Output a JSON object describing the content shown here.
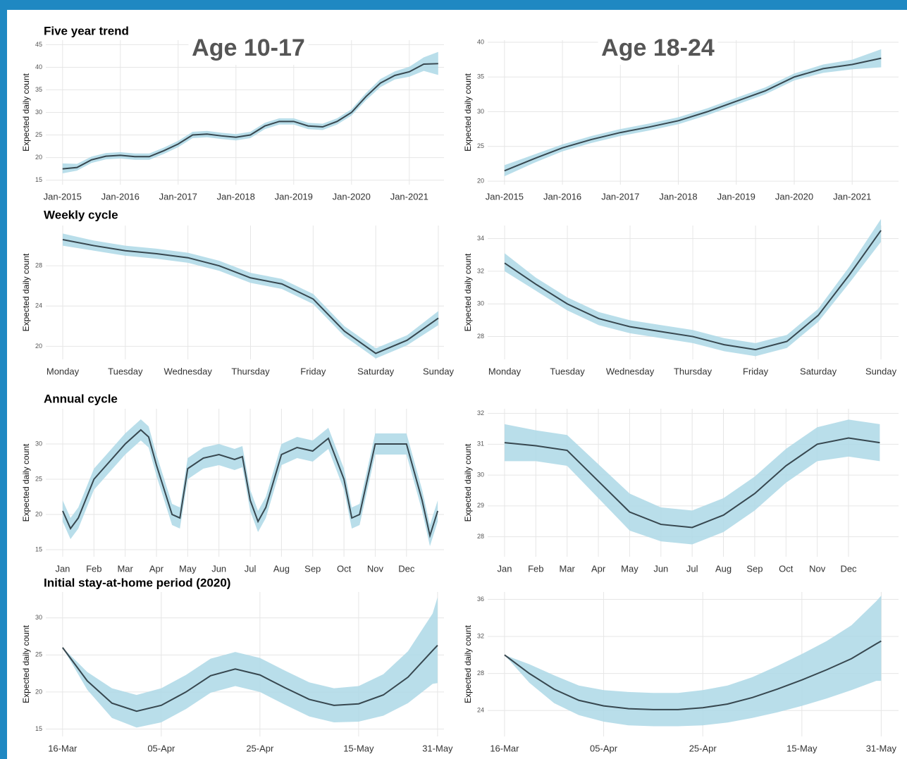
{
  "chart_data": [
    {
      "type": "line",
      "title": "Five year trend",
      "annotation": "Age 10-17",
      "y_label": "Expected daily count",
      "x": [
        2015,
        2015.25,
        2015.5,
        2015.75,
        2016,
        2016.25,
        2016.5,
        2016.75,
        2017,
        2017.25,
        2017.5,
        2017.75,
        2018,
        2018.25,
        2018.5,
        2018.75,
        2019,
        2019.25,
        2019.5,
        2019.75,
        2020,
        2020.25,
        2020.5,
        2020.75,
        2021,
        2021.25,
        2021.5
      ],
      "values": [
        17.5,
        17.8,
        19.5,
        20.3,
        20.5,
        20.2,
        20.2,
        21.5,
        23,
        25,
        25.2,
        24.8,
        24.5,
        25,
        27,
        28,
        28,
        27,
        26.8,
        28,
        30,
        33.5,
        36.5,
        38.2,
        39,
        40.7,
        40.8
      ],
      "lower": [
        16.5,
        17.1,
        18.8,
        19.6,
        19.8,
        19.5,
        19.5,
        20.8,
        22.3,
        24.3,
        24.5,
        24.1,
        23.8,
        24.3,
        26.3,
        27.3,
        27.3,
        26.3,
        26.1,
        27.3,
        29.3,
        32.7,
        35.6,
        37.3,
        37.9,
        39.2,
        38.3
      ],
      "upper": [
        18.7,
        18.6,
        20.2,
        21,
        21.2,
        20.9,
        20.9,
        22.2,
        23.7,
        25.7,
        25.9,
        25.5,
        25.2,
        25.7,
        27.7,
        28.7,
        28.7,
        27.7,
        27.5,
        28.7,
        30.7,
        34.3,
        37.4,
        39.1,
        40.1,
        42.2,
        43.4
      ],
      "xlim": [
        2014.71,
        2021.6
      ],
      "ylim": [
        14,
        46
      ],
      "xticks": [
        {
          "value": 2015,
          "label": "Jan-2015"
        },
        {
          "value": 2016,
          "label": "Jan-2016"
        },
        {
          "value": 2017,
          "label": "Jan-2017"
        },
        {
          "value": 2018,
          "label": "Jan-2018"
        },
        {
          "value": 2019,
          "label": "Jan-2019"
        },
        {
          "value": 2020,
          "label": "Jan-2020"
        },
        {
          "value": 2021,
          "label": "Jan-2021"
        }
      ],
      "yticks": [
        15,
        20,
        25,
        30,
        35,
        40,
        45
      ],
      "color": "#37474f",
      "band_color": "#add8e6",
      "grid": true
    },
    {
      "type": "line",
      "annotation": "Age 18-24",
      "y_label": "Expected daily count",
      "x": [
        2015,
        2015.5,
        2016,
        2016.5,
        2017,
        2017.5,
        2018,
        2018.5,
        2019,
        2019.5,
        2020,
        2020.5,
        2021,
        2021.5
      ],
      "values": [
        21.5,
        23.2,
        24.8,
        26,
        27,
        27.8,
        28.7,
        30,
        31.5,
        33,
        35,
        36.2,
        36.8,
        37.7
      ],
      "lower": [
        20.7,
        22.6,
        24.3,
        25.5,
        26.5,
        27.3,
        28.2,
        29.5,
        31,
        32.5,
        34.5,
        35.6,
        36.1,
        36.4
      ],
      "upper": [
        22.3,
        23.8,
        25.3,
        26.5,
        27.5,
        28.3,
        29.2,
        30.5,
        32,
        33.5,
        35.5,
        36.8,
        37.5,
        39
      ],
      "xlim": [
        2014.71,
        2021.8
      ],
      "ylim": [
        19.5,
        40.3
      ],
      "xticks": [
        {
          "value": 2015,
          "label": "Jan-2015"
        },
        {
          "value": 2016,
          "label": "Jan-2016"
        },
        {
          "value": 2017,
          "label": "Jan-2017"
        },
        {
          "value": 2018,
          "label": "Jan-2018"
        },
        {
          "value": 2019,
          "label": "Jan-2019"
        },
        {
          "value": 2020,
          "label": "Jan-2020"
        },
        {
          "value": 2021,
          "label": "Jan-2021"
        }
      ],
      "yticks": [
        20,
        25,
        30,
        35,
        40
      ],
      "color": "#37474f",
      "band_color": "#add8e6",
      "grid": true
    },
    {
      "type": "line",
      "title": "Weekly cycle",
      "y_label": "Expected daily count",
      "x": [
        0,
        0.5,
        1,
        1.5,
        2,
        2.5,
        3,
        3.5,
        4,
        4.5,
        5,
        5.5,
        6
      ],
      "values": [
        30.6,
        30,
        29.5,
        29.2,
        28.8,
        28,
        26.8,
        26.2,
        24.7,
        21.5,
        19.3,
        20.6,
        22.8
      ],
      "lower": [
        30,
        29.5,
        29,
        28.7,
        28.3,
        27.5,
        26.3,
        25.7,
        24.2,
        21,
        18.8,
        20.1,
        22.1
      ],
      "upper": [
        31.2,
        30.5,
        30,
        29.7,
        29.3,
        28.5,
        27.3,
        26.7,
        25.2,
        22,
        19.8,
        21.1,
        23.5
      ],
      "xlim": [
        -0.27,
        6.09
      ],
      "ylim": [
        18.7,
        32
      ],
      "xticks": [
        {
          "value": 0,
          "label": "Monday"
        },
        {
          "value": 1,
          "label": "Tuesday"
        },
        {
          "value": 2,
          "label": "Wednesday"
        },
        {
          "value": 3,
          "label": "Thursday"
        },
        {
          "value": 4,
          "label": "Friday"
        },
        {
          "value": 5,
          "label": "Saturday"
        },
        {
          "value": 6,
          "label": "Sunday"
        }
      ],
      "yticks": [
        20,
        24,
        28
      ],
      "color": "#37474f",
      "band_color": "#add8e6",
      "grid": true
    },
    {
      "type": "line",
      "y_label": "Expected daily count",
      "x": [
        0,
        0.5,
        1,
        1.5,
        2,
        2.5,
        3,
        3.5,
        4,
        4.5,
        5,
        5.5,
        6
      ],
      "values": [
        32.5,
        31.2,
        30,
        29.1,
        28.6,
        28.3,
        28,
        27.5,
        27.2,
        27.7,
        29.3,
        31.8,
        34.5
      ],
      "lower": [
        32,
        30.8,
        29.6,
        28.7,
        28.2,
        27.9,
        27.6,
        27.1,
        26.8,
        27.3,
        28.9,
        31.3,
        33.8
      ],
      "upper": [
        33.1,
        31.6,
        30.4,
        29.5,
        29,
        28.7,
        28.4,
        27.9,
        27.6,
        28.1,
        29.7,
        32.3,
        35.2
      ],
      "xlim": [
        -0.27,
        6.28
      ],
      "ylim": [
        26.6,
        34.8
      ],
      "xticks": [
        {
          "value": 0,
          "label": "Monday"
        },
        {
          "value": 1,
          "label": "Tuesday"
        },
        {
          "value": 2,
          "label": "Wednesday"
        },
        {
          "value": 3,
          "label": "Thursday"
        },
        {
          "value": 4,
          "label": "Friday"
        },
        {
          "value": 5,
          "label": "Saturday"
        },
        {
          "value": 6,
          "label": "Sunday"
        }
      ],
      "yticks": [
        28,
        30,
        32,
        34
      ],
      "color": "#37474f",
      "band_color": "#add8e6",
      "grid": true
    },
    {
      "type": "line",
      "title": "Annual cycle",
      "y_label": "Expected daily count",
      "x": [
        0,
        0.25,
        0.5,
        1,
        1.5,
        2,
        2.5,
        2.75,
        3,
        3.5,
        3.75,
        4,
        4.5,
        5,
        5.5,
        5.75,
        6,
        6.25,
        6.5,
        7,
        7.5,
        8,
        8.5,
        9,
        9.25,
        9.5,
        10,
        10.5,
        11,
        11.5,
        11.75,
        12
      ],
      "values": [
        20.5,
        18,
        19.5,
        25,
        27.5,
        30,
        32,
        31,
        27,
        20,
        19.5,
        26.5,
        28,
        28.5,
        27.8,
        28.2,
        22,
        19,
        21,
        28.5,
        29.5,
        29,
        30.8,
        25,
        19.5,
        20,
        30,
        30,
        30,
        22,
        17,
        20.5
      ],
      "lower": [
        19,
        16.5,
        18,
        23.5,
        26,
        28.5,
        30.5,
        29.5,
        25.5,
        18.5,
        18,
        25,
        26.5,
        27,
        26.3,
        26.7,
        20.5,
        17.5,
        19.5,
        27,
        28,
        27.5,
        29.3,
        23.5,
        18,
        18.5,
        28.5,
        28.5,
        28.5,
        20.5,
        15.5,
        19
      ],
      "upper": [
        22,
        19.5,
        21,
        26.5,
        29,
        31.5,
        33.5,
        32.5,
        28.5,
        21.5,
        21,
        28,
        29.5,
        30,
        29.3,
        29.7,
        23.5,
        20.5,
        22.5,
        30,
        31,
        30.5,
        32.3,
        26.5,
        21,
        21.5,
        31.5,
        31.5,
        31.5,
        23.5,
        18.5,
        22
      ],
      "xlim": [
        -0.54,
        12.2
      ],
      "ylim": [
        14,
        35
      ],
      "xticks": [
        {
          "value": 0,
          "label": "Jan"
        },
        {
          "value": 1,
          "label": "Feb"
        },
        {
          "value": 2,
          "label": "Mar"
        },
        {
          "value": 3,
          "label": "Apr"
        },
        {
          "value": 4,
          "label": "May"
        },
        {
          "value": 5,
          "label": "Jun"
        },
        {
          "value": 6,
          "label": "Jul"
        },
        {
          "value": 7,
          "label": "Aug"
        },
        {
          "value": 8,
          "label": "Sep"
        },
        {
          "value": 9,
          "label": "Oct"
        },
        {
          "value": 10,
          "label": "Nov"
        },
        {
          "value": 11,
          "label": "Dec"
        }
      ],
      "yticks": [
        15,
        20,
        25,
        30
      ],
      "color": "#37474f",
      "band_color": "#add8e6",
      "grid": true
    },
    {
      "type": "line",
      "y_label": "Expected daily count",
      "x": [
        0,
        1,
        2,
        3,
        4,
        5,
        6,
        7,
        8,
        9,
        10,
        11,
        12
      ],
      "values": [
        31.05,
        30.95,
        30.8,
        29.8,
        28.8,
        28.4,
        28.3,
        28.7,
        29.4,
        30.3,
        31,
        31.2,
        31.05
      ],
      "lower": [
        30.45,
        30.45,
        30.3,
        29.25,
        28.2,
        27.85,
        27.75,
        28.15,
        28.85,
        29.75,
        30.45,
        30.6,
        30.45
      ],
      "upper": [
        31.65,
        31.45,
        31.3,
        30.35,
        29.4,
        28.95,
        28.85,
        29.25,
        29.95,
        30.85,
        31.55,
        31.8,
        31.65
      ],
      "xlim": [
        -0.54,
        12.6
      ],
      "ylim": [
        27.35,
        32.15
      ],
      "xticks": [
        {
          "value": 0,
          "label": "Jan"
        },
        {
          "value": 1,
          "label": "Feb"
        },
        {
          "value": 2,
          "label": "Mar"
        },
        {
          "value": 3,
          "label": "Apr"
        },
        {
          "value": 4,
          "label": "May"
        },
        {
          "value": 5,
          "label": "Jun"
        },
        {
          "value": 6,
          "label": "Jul"
        },
        {
          "value": 7,
          "label": "Aug"
        },
        {
          "value": 8,
          "label": "Sep"
        },
        {
          "value": 9,
          "label": "Oct"
        },
        {
          "value": 10,
          "label": "Nov"
        },
        {
          "value": 11,
          "label": "Dec"
        }
      ],
      "yticks": [
        28,
        29,
        30,
        31,
        32
      ],
      "color": "#37474f",
      "band_color": "#add8e6",
      "grid": true
    },
    {
      "type": "line",
      "title": "Initial stay-at-home period (2020)",
      "y_label": "Expected daily count",
      "x": [
        0,
        5,
        10,
        15,
        20,
        25,
        30,
        35,
        40,
        45,
        50,
        55,
        60,
        65,
        70,
        75,
        76
      ],
      "values": [
        26,
        21.5,
        18.5,
        17.4,
        18.2,
        20,
        22.2,
        23.1,
        22.3,
        20.6,
        19,
        18.2,
        18.4,
        19.6,
        22,
        25.6,
        26.3
      ],
      "lower": [
        26,
        20.3,
        16.5,
        15.2,
        15.9,
        17.7,
        19.9,
        20.8,
        20,
        18.3,
        16.7,
        15.9,
        16,
        16.8,
        18.5,
        21.1,
        21.2
      ],
      "upper": [
        26,
        22.7,
        20.5,
        19.6,
        20.5,
        22.3,
        24.5,
        25.4,
        24.6,
        22.9,
        21.3,
        20.5,
        20.8,
        22.4,
        25.5,
        30.6,
        32.8
      ],
      "xlim": [
        -3.4,
        77.3
      ],
      "ylim": [
        14,
        33.5
      ],
      "xticks": [
        {
          "value": 0,
          "label": "16-Mar"
        },
        {
          "value": 20,
          "label": "05-Apr"
        },
        {
          "value": 40,
          "label": "25-Apr"
        },
        {
          "value": 60,
          "label": "15-May"
        },
        {
          "value": 76,
          "label": "31-May"
        }
      ],
      "yticks": [
        15,
        20,
        25,
        30
      ],
      "color": "#37474f",
      "band_color": "#add8e6",
      "grid": true
    },
    {
      "type": "line",
      "y_label": "Expected daily count",
      "x": [
        0,
        5,
        10,
        15,
        20,
        25,
        30,
        35,
        40,
        45,
        50,
        55,
        60,
        65,
        70,
        75,
        76
      ],
      "values": [
        30,
        28,
        26.3,
        25.1,
        24.5,
        24.2,
        24.1,
        24.1,
        24.3,
        24.7,
        25.4,
        26.3,
        27.3,
        28.4,
        29.6,
        31.2,
        31.5
      ],
      "lower": [
        30,
        27,
        24.8,
        23.5,
        22.8,
        22.4,
        22.3,
        22.3,
        22.4,
        22.7,
        23.2,
        23.8,
        24.5,
        25.3,
        26.2,
        27.2,
        27.2
      ],
      "upper": [
        30,
        29,
        27.8,
        26.7,
        26.2,
        26,
        25.9,
        25.9,
        26.2,
        26.7,
        27.6,
        28.8,
        30.1,
        31.5,
        33.2,
        35.8,
        36.4
      ],
      "xlim": [
        -3.4,
        79.5
      ],
      "ylim": [
        21.2,
        36.8
      ],
      "xticks": [
        {
          "value": 0,
          "label": "16-Mar"
        },
        {
          "value": 20,
          "label": "05-Apr"
        },
        {
          "value": 40,
          "label": "25-Apr"
        },
        {
          "value": 60,
          "label": "15-May"
        },
        {
          "value": 76,
          "label": "31-May"
        }
      ],
      "yticks": [
        24,
        28,
        32,
        36
      ],
      "color": "#37474f",
      "band_color": "#add8e6",
      "grid": true
    }
  ]
}
